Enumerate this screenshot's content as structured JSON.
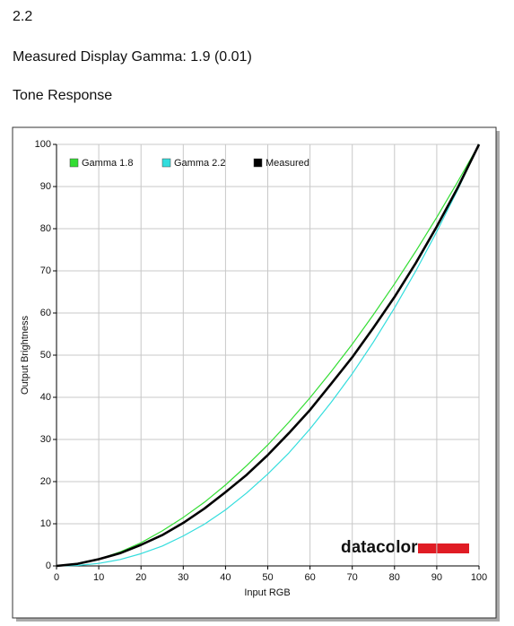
{
  "header": {
    "value": "2.2",
    "gamma_line": "Measured Display Gamma: 1.9 (0.01)",
    "section": "Tone Response"
  },
  "chart_data": {
    "type": "line",
    "xlabel": "Input RGB",
    "ylabel": "Output Brightness",
    "logo": "datacolor",
    "x": [
      0,
      5,
      10,
      15,
      20,
      25,
      30,
      35,
      40,
      45,
      50,
      55,
      60,
      65,
      70,
      75,
      80,
      85,
      90,
      95,
      100
    ],
    "series": [
      {
        "name": "Gamma 1.8",
        "color": "#33dd33",
        "width": 1.2,
        "values": [
          0,
          0.5,
          1.6,
          3.3,
          5.5,
          8.3,
          11.5,
          15.1,
          19.2,
          23.8,
          28.7,
          34.1,
          39.9,
          46.1,
          52.6,
          59.6,
          66.9,
          74.6,
          82.7,
          91.2,
          100
        ]
      },
      {
        "name": "Gamma 2.2",
        "color": "#33dddd",
        "width": 1.2,
        "values": [
          0,
          0.1,
          0.6,
          1.5,
          2.9,
          4.7,
          7.1,
          9.9,
          13.3,
          17.3,
          21.8,
          26.8,
          32.5,
          38.8,
          45.6,
          53.1,
          61.2,
          69.9,
          79.3,
          89.3,
          100
        ]
      },
      {
        "name": "Measured",
        "color": "#000000",
        "width": 2.6,
        "values": [
          0,
          0.5,
          1.6,
          3.0,
          5.0,
          7.3,
          10.2,
          13.6,
          17.5,
          21.6,
          26.3,
          31.5,
          37.0,
          43.2,
          49.5,
          56.5,
          63.8,
          71.8,
          80.5,
          89.8,
          100
        ]
      }
    ],
    "xlim": [
      0,
      100
    ],
    "ylim": [
      0,
      100
    ],
    "xticks": [
      0,
      10,
      20,
      30,
      40,
      50,
      60,
      70,
      80,
      90,
      100
    ],
    "yticks": [
      0,
      10,
      20,
      30,
      40,
      50,
      60,
      70,
      80,
      90,
      100
    ],
    "grid": true
  }
}
